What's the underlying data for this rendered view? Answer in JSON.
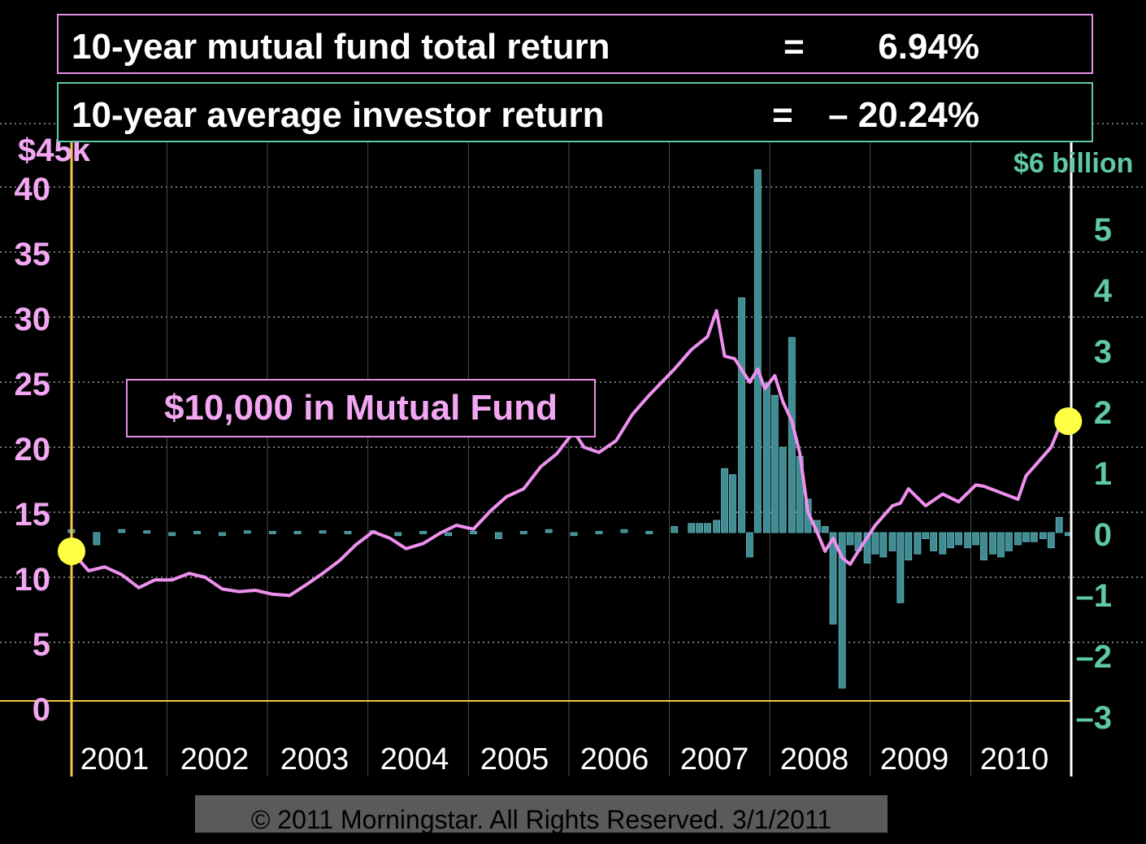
{
  "header": {
    "fund_label": "10-year mutual fund total return",
    "fund_eq": "=",
    "fund_value": "6.94%",
    "investor_label": "10-year average investor return",
    "investor_eq": "=",
    "investor_value": "– 20.24%"
  },
  "annotation": "$10,000 in Mutual Fund",
  "footer": "© 2011 Morningstar. All Rights Reserved. 3/1/2011",
  "colors": {
    "fund_line": "#ee90ee",
    "flows": "#3f8c93",
    "left_axis": "#f3a7f3",
    "right_axis": "#5ec9a3",
    "year_axis": "#f2c744",
    "grid": "#9a9a9a",
    "markers": "#ffff44"
  },
  "chart_data": {
    "type": "line",
    "x_categories": [
      "2001",
      "2002",
      "2003",
      "2004",
      "2005",
      "2006",
      "2007",
      "2008",
      "2009",
      "2010"
    ],
    "y_left": {
      "ticks": [
        "0",
        "5",
        "10",
        "15",
        "20",
        "25",
        "30",
        "35",
        "40"
      ],
      "top_label": "$45k",
      "range": [
        0,
        45
      ]
    },
    "y_right": {
      "ticks": [
        "–3",
        "–2",
        "–1",
        "0",
        "1",
        "2",
        "3",
        "4",
        "5"
      ],
      "top_label": "$6 billion",
      "range": [
        -3,
        6
      ]
    },
    "grid": true,
    "series": [
      {
        "axis": "left",
        "kind": "line",
        "x": [
          2001.0,
          2001.17,
          2001.33,
          2001.5,
          2001.67,
          2001.83,
          2002.0,
          2002.17,
          2002.33,
          2002.5,
          2002.67,
          2002.83,
          2003.0,
          2003.17,
          2003.33,
          2003.5,
          2003.67,
          2003.83,
          2004.0,
          2004.17,
          2004.33,
          2004.5,
          2004.67,
          2004.83,
          2005.0,
          2005.17,
          2005.33,
          2005.5,
          2005.67,
          2005.83,
          2006.0,
          2006.1,
          2006.25,
          2006.42,
          2006.58,
          2006.75,
          2007.0,
          2007.17,
          2007.33,
          2007.42,
          2007.5,
          2007.6,
          2007.75,
          2007.83,
          2007.9,
          2008.0,
          2008.08,
          2008.17,
          2008.25,
          2008.33,
          2008.42,
          2008.5,
          2008.58,
          2008.67,
          2008.75,
          2008.83,
          2009.0,
          2009.17,
          2009.25,
          2009.33,
          2009.5,
          2009.67,
          2009.83,
          2010.0,
          2010.08,
          2010.25,
          2010.42,
          2010.5,
          2010.58,
          2010.75,
          2010.83,
          2010.92
        ],
        "y": [
          12.0,
          10.5,
          10.8,
          10.2,
          9.2,
          9.8,
          9.8,
          10.3,
          10.0,
          9.1,
          8.9,
          9.0,
          8.7,
          8.6,
          9.4,
          10.3,
          11.3,
          12.5,
          13.5,
          13.0,
          12.2,
          12.6,
          13.4,
          14.0,
          13.7,
          15.1,
          16.2,
          16.8,
          18.5,
          19.5,
          21.2,
          20.0,
          19.6,
          20.5,
          22.5,
          24.0,
          26.0,
          27.5,
          28.5,
          30.5,
          27.0,
          26.8,
          25.0,
          26.0,
          24.5,
          25.5,
          23.5,
          22.0,
          19.5,
          15.0,
          13.5,
          12.0,
          13.0,
          11.5,
          11.0,
          12.0,
          14.0,
          15.5,
          15.7,
          16.8,
          15.5,
          16.4,
          15.8,
          17.1,
          17.0,
          16.5,
          16.0,
          17.8,
          18.5,
          20.0,
          21.5,
          22.0
        ]
      },
      {
        "axis": "right",
        "kind": "bar",
        "name": "",
        "x": [
          2001.0,
          2001.25,
          2001.5,
          2001.75,
          2002.0,
          2002.25,
          2002.5,
          2002.75,
          2003.0,
          2003.25,
          2003.5,
          2003.75,
          2004.0,
          2004.25,
          2004.5,
          2004.75,
          2005.0,
          2005.25,
          2005.5,
          2005.75,
          2006.0,
          2006.25,
          2006.5,
          2006.75,
          2007.0,
          2007.17,
          2007.25,
          2007.33,
          2007.42,
          2007.5,
          2007.58,
          2007.67,
          2007.75,
          2007.83,
          2007.92,
          2008.0,
          2008.08,
          2008.17,
          2008.25,
          2008.33,
          2008.42,
          2008.5,
          2008.58,
          2008.67,
          2008.75,
          2008.83,
          2008.92,
          2009.0,
          2009.08,
          2009.17,
          2009.25,
          2009.33,
          2009.42,
          2009.5,
          2009.58,
          2009.67,
          2009.75,
          2009.83,
          2009.92,
          2010.0,
          2010.08,
          2010.17,
          2010.25,
          2010.33,
          2010.42,
          2010.5,
          2010.58,
          2010.67,
          2010.75,
          2010.83,
          2010.92
        ],
        "y": [
          0.05,
          -0.2,
          0.05,
          0.03,
          -0.05,
          0.02,
          -0.05,
          0.03,
          0.02,
          0.02,
          0.03,
          0.02,
          0.03,
          -0.05,
          0.02,
          -0.05,
          0.02,
          -0.1,
          0.02,
          0.05,
          -0.05,
          0.02,
          0.05,
          0.02,
          0.1,
          0.15,
          0.15,
          0.15,
          0.2,
          1.05,
          0.95,
          3.85,
          -0.4,
          5.95,
          2.45,
          2.25,
          1.4,
          3.2,
          1.25,
          0.55,
          0.2,
          0.1,
          -1.5,
          -2.55,
          -0.2,
          -0.3,
          -0.5,
          -0.35,
          -0.4,
          -0.3,
          -1.15,
          -0.45,
          -0.35,
          -0.1,
          -0.3,
          -0.35,
          -0.25,
          -0.2,
          -0.25,
          -0.2,
          -0.45,
          -0.35,
          -0.4,
          -0.3,
          -0.2,
          -0.15,
          -0.15,
          -0.1,
          -0.25,
          0.25,
          -0.05
        ]
      }
    ]
  }
}
